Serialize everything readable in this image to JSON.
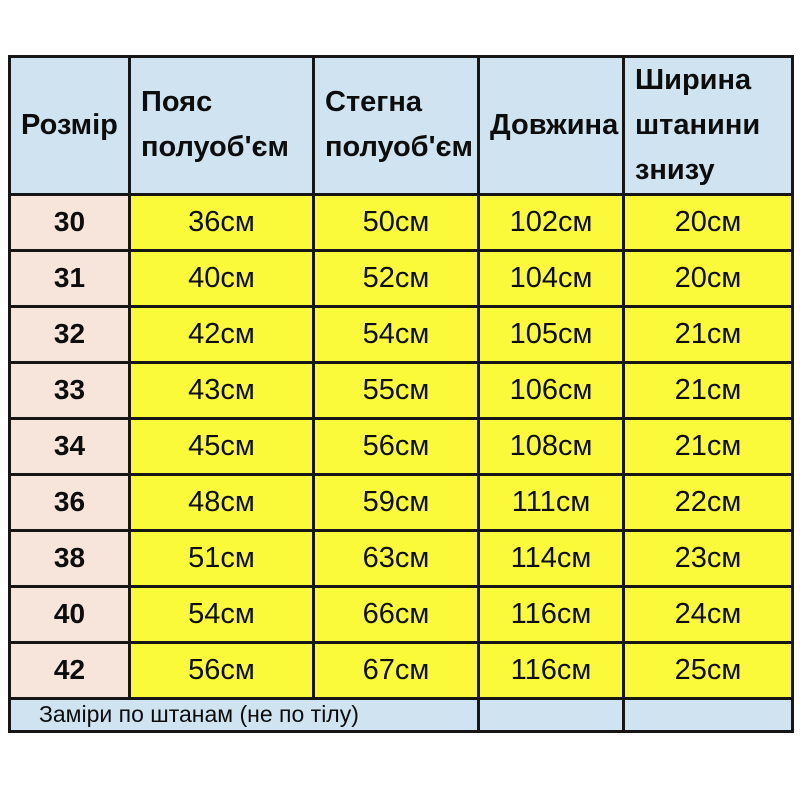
{
  "colors": {
    "header_bg": "#cfe3f1",
    "size_col_bg": "#f7e5dc",
    "value_bg": "#fafa3b",
    "footer_bg": "#cfe3f1",
    "border": "#161616",
    "text": "#0d0d0d",
    "page_bg": "#ffffff"
  },
  "table": {
    "headers": {
      "size": "Розмір",
      "waist": "Пояс полуоб'єм",
      "hips": "Стегна полуоб'єм",
      "length": "Довжина",
      "leg_width": "Ширина штанини знизу"
    },
    "rows": [
      {
        "size": "30",
        "waist": "36см",
        "hips": "50см",
        "length": "102см",
        "leg_width": "20см"
      },
      {
        "size": "31",
        "waist": "40см",
        "hips": "52см",
        "length": "104см",
        "leg_width": "20см"
      },
      {
        "size": "32",
        "waist": "42см",
        "hips": "54см",
        "length": "105см",
        "leg_width": "21см"
      },
      {
        "size": "33",
        "waist": "43см",
        "hips": "55см",
        "length": "106см",
        "leg_width": "21см"
      },
      {
        "size": "34",
        "waist": "45см",
        "hips": "56см",
        "length": "108см",
        "leg_width": "21см"
      },
      {
        "size": "36",
        "waist": "48см",
        "hips": "59см",
        "length": "111см",
        "leg_width": "22см"
      },
      {
        "size": "38",
        "waist": "51см",
        "hips": "63см",
        "length": "114см",
        "leg_width": "23см"
      },
      {
        "size": "40",
        "waist": "54см",
        "hips": "66см",
        "length": "116см",
        "leg_width": "24см"
      },
      {
        "size": "42",
        "waist": "56см",
        "hips": "67см",
        "length": "116см",
        "leg_width": "25см"
      }
    ],
    "footer_note": "Заміри по штанам (не по тілу)"
  },
  "chart_data": {
    "type": "table",
    "title": "Pants size chart (measurements in cm)",
    "columns": [
      "Розмір",
      "Пояс полуоб'єм",
      "Стегна полуоб'єм",
      "Довжина",
      "Ширина штанини знизу"
    ],
    "rows": [
      [
        "30",
        "36см",
        "50см",
        "102см",
        "20см"
      ],
      [
        "31",
        "40см",
        "52см",
        "104см",
        "20см"
      ],
      [
        "32",
        "42см",
        "54см",
        "105см",
        "21см"
      ],
      [
        "33",
        "43см",
        "55см",
        "106см",
        "21см"
      ],
      [
        "34",
        "45см",
        "56см",
        "108см",
        "21см"
      ],
      [
        "36",
        "48см",
        "59см",
        "111см",
        "22см"
      ],
      [
        "38",
        "51см",
        "63см",
        "114см",
        "23см"
      ],
      [
        "40",
        "54см",
        "66см",
        "116см",
        "24см"
      ],
      [
        "42",
        "56см",
        "67см",
        "116см",
        "25см"
      ]
    ],
    "note": "Заміри по штанам (не по тілу)"
  }
}
